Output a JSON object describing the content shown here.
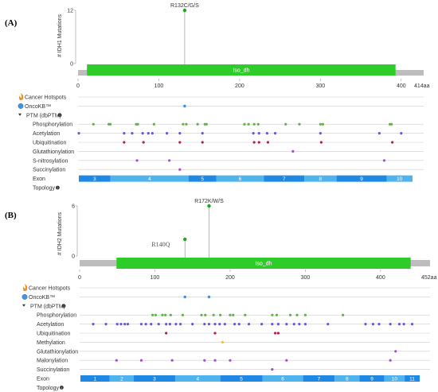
{
  "panels": [
    {
      "letter": "(A)",
      "y_axis_label": "# IDH1 Mutations",
      "y_ticks": [
        "12",
        "0"
      ],
      "x_ticks": [
        "0",
        "100",
        "200",
        "300",
        "400"
      ],
      "length_label": "414aa",
      "length": 414,
      "ymax": 12,
      "domain": {
        "name": "Iso_dh",
        "start": 11,
        "end": 393,
        "color": "#2ecc28"
      },
      "mutations": [
        {
          "label": "R132C/G/S",
          "pos": 132,
          "count": 12,
          "color": "#1aa81a"
        }
      ],
      "tracks": [
        {
          "label": "Cancer Hotspots",
          "icon": "flame-icon",
          "sites": []
        },
        {
          "label": "OncoKB™",
          "icon": "oncokb-icon",
          "sites": [
            {
              "pos": 132,
              "color": "#4a90e2"
            }
          ]
        },
        {
          "label": "PTM (dbPTM)",
          "icon": "caret-down-icon",
          "info": true,
          "header": true,
          "sites": []
        },
        {
          "label": "Phosphorylation",
          "color": "#59b73f",
          "positions": [
            19,
            38,
            40,
            72,
            74,
            94,
            130,
            134,
            148,
            157,
            159,
            206,
            211,
            218,
            223,
            257,
            274,
            300,
            303,
            386,
            388
          ]
        },
        {
          "label": "Acetylation",
          "color": "#6a5acd",
          "positions": [
            1,
            57,
            67,
            80,
            87,
            92,
            110,
            126,
            154,
            217,
            224,
            234,
            244,
            300,
            373,
            400
          ]
        },
        {
          "label": "Ubiquitination",
          "color": "#b0224e",
          "positions": [
            57,
            81,
            126,
            154,
            218,
            224,
            235,
            301,
            389
          ]
        },
        {
          "label": "Glutathionylation",
          "color": "#a24ec4",
          "positions": [
            266
          ]
        },
        {
          "label": "S-nitrosylation",
          "color": "#a24ec4",
          "positions": [
            73,
            113,
            379
          ]
        },
        {
          "label": "Succinylation",
          "color": "#a24ec4",
          "positions": [
            126
          ]
        },
        {
          "label": "Exon",
          "exon": true,
          "exons": [
            {
              "label": "3",
              "start": 1,
              "end": 40
            },
            {
              "label": "4",
              "start": 40,
              "end": 137
            },
            {
              "label": "5",
              "start": 137,
              "end": 171
            },
            {
              "label": "6",
              "start": 171,
              "end": 230
            },
            {
              "label": "7",
              "start": 230,
              "end": 280
            },
            {
              "label": "8",
              "start": 280,
              "end": 320
            },
            {
              "label": "9",
              "start": 320,
              "end": 382
            },
            {
              "label": "10",
              "start": 382,
              "end": 414
            }
          ]
        },
        {
          "label": "Topology",
          "info": true,
          "sites": []
        }
      ]
    },
    {
      "letter": "(B)",
      "y_axis_label": "# IDH2 Mutations",
      "y_ticks": [
        "6",
        "0"
      ],
      "x_ticks": [
        "0",
        "100",
        "200",
        "300",
        "400"
      ],
      "length_label": "452aa",
      "length": 452,
      "ymax": 6,
      "domain": {
        "name": "Iso_dh",
        "start": 49,
        "end": 440,
        "color": "#2ecc28"
      },
      "annotation": {
        "label": "R140Q"
      },
      "mutations": [
        {
          "label": "R140Q",
          "pos": 140,
          "count": 2,
          "color": "#1aa81a",
          "hide_label": true
        },
        {
          "label": "R172K/W/S",
          "pos": 172,
          "count": 6,
          "color": "#1aa81a"
        }
      ],
      "tracks": [
        {
          "label": "Cancer Hotspots",
          "icon": "flame-icon",
          "sites": []
        },
        {
          "label": "OncoKB™",
          "icon": "oncokb-icon",
          "sites": [
            {
              "pos": 140,
              "color": "#4a90e2"
            },
            {
              "pos": 172,
              "color": "#4a90e2"
            }
          ]
        },
        {
          "label": "PTM (dbPTM)",
          "icon": "caret-down-icon",
          "info": true,
          "header": true,
          "sites": []
        },
        {
          "label": "Phosphorylation",
          "color": "#59b73f",
          "positions": [
            97,
            101,
            110,
            114,
            121,
            137,
            162,
            167,
            178,
            187,
            200,
            204,
            220,
            256,
            262,
            280,
            289,
            300,
            350
          ]
        },
        {
          "label": "Acetylation",
          "color": "#6a5acd",
          "positions": [
            18,
            35,
            50,
            55,
            60,
            64,
            82,
            88,
            95,
            105,
            115,
            120,
            128,
            134,
            150,
            166,
            172,
            180,
            186,
            193,
            206,
            212,
            225,
            242,
            256,
            264,
            275,
            285,
            292,
            300,
            330,
            380,
            390,
            398,
            413,
            425,
            431,
            442
          ]
        },
        {
          "label": "Ubiquitination",
          "color": "#b0224e",
          "positions": [
            115,
            180,
            260,
            264
          ]
        },
        {
          "label": "Methylation",
          "color": "#f2c232",
          "positions": [
            190
          ]
        },
        {
          "label": "Glutathionylation",
          "color": "#a24ec4",
          "positions": [
            420
          ]
        },
        {
          "label": "Malonylation",
          "color": "#a24ec4",
          "positions": [
            49,
            82,
            123,
            166,
            180,
            200,
            275,
            413
          ]
        },
        {
          "label": "Succinylation",
          "color": "#a24ec4",
          "positions": [
            256
          ]
        },
        {
          "label": "Exon",
          "exon": true,
          "exons": [
            {
              "label": "1",
              "start": 1,
              "end": 40
            },
            {
              "label": "2",
              "start": 40,
              "end": 72
            },
            {
              "label": "3",
              "start": 72,
              "end": 127
            },
            {
              "label": "4",
              "start": 127,
              "end": 187
            },
            {
              "label": "5",
              "start": 187,
              "end": 243
            },
            {
              "label": "6",
              "start": 243,
              "end": 297
            },
            {
              "label": "7",
              "start": 297,
              "end": 339
            },
            {
              "label": "8",
              "start": 339,
              "end": 372
            },
            {
              "label": "9",
              "start": 372,
              "end": 405
            },
            {
              "label": "10",
              "start": 405,
              "end": 432
            },
            {
              "label": "11",
              "start": 432,
              "end": 452
            }
          ]
        },
        {
          "label": "Topology",
          "info": true,
          "sites": []
        }
      ]
    }
  ],
  "colors": {
    "exon_dark": "#1e88e5",
    "exon_light": "#4fb3ee",
    "backbone": "#bdbdbd",
    "track_line": "#cccccc"
  }
}
